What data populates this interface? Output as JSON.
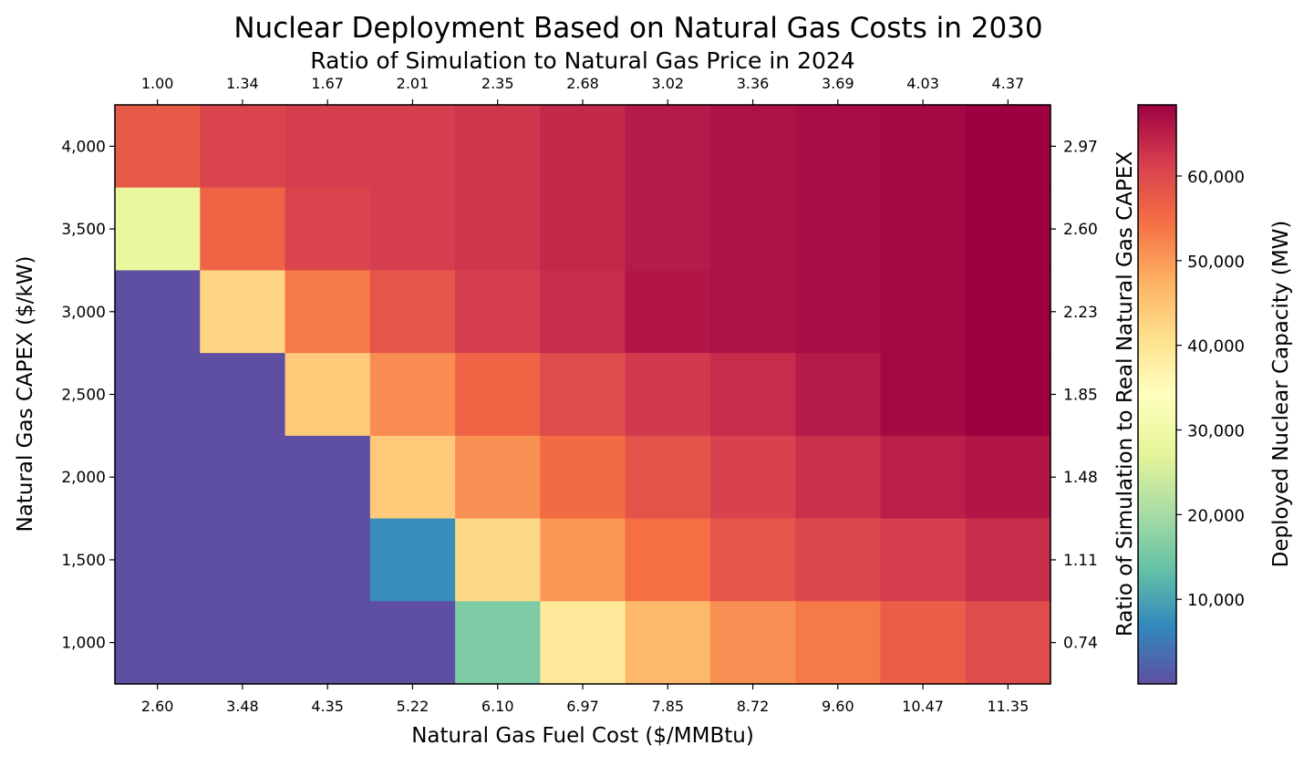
{
  "chart_data": {
    "type": "heatmap",
    "title": "Nuclear Deployment Based on Natural Gas Costs in 2030",
    "top_xlabel": "Ratio of Simulation to Natural Gas Price in 2024",
    "xlabel": "Natural Gas Fuel Cost ($/MMBtu)",
    "ylabel": "Natural Gas CAPEX ($/kW)",
    "right_ylabel": "Ratio of Simulation to Real Natural Gas CAPEX",
    "colorbar_label": "Deployed Nuclear Capacity (MW)",
    "colormap": "Spectral_r",
    "x_ticks": [
      "2.60",
      "3.48",
      "4.35",
      "5.22",
      "6.10",
      "6.97",
      "7.85",
      "8.72",
      "9.60",
      "10.47",
      "11.35"
    ],
    "top_x_ticks": [
      "1.00",
      "1.34",
      "1.67",
      "2.01",
      "2.35",
      "2.68",
      "3.02",
      "3.36",
      "3.69",
      "4.03",
      "4.37"
    ],
    "y_ticks": [
      "4,000",
      "3,500",
      "3,000",
      "2,500",
      "2,000",
      "1,500",
      "1,000"
    ],
    "right_y_ticks": [
      "2.97",
      "2.60",
      "2.23",
      "1.85",
      "1.48",
      "1.11",
      "0.74"
    ],
    "colorbar_ticks": [
      "10,000",
      "20,000",
      "30,000",
      "40,000",
      "50,000",
      "60,000"
    ],
    "colorbar_tick_values": [
      10000,
      20000,
      30000,
      40000,
      50000,
      60000
    ],
    "vlim": [
      0,
      68400
    ],
    "x": [
      2.6,
      3.48,
      4.35,
      5.22,
      6.1,
      6.97,
      7.85,
      8.72,
      9.6,
      10.47,
      11.35
    ],
    "y": [
      4000,
      3500,
      3000,
      2500,
      2000,
      1500,
      1000
    ],
    "values": [
      [
        57500,
        60500,
        61500,
        61500,
        62500,
        64000,
        65500,
        66500,
        67000,
        67500,
        68400
      ],
      [
        28500,
        56000,
        60500,
        61500,
        62500,
        64000,
        65500,
        66500,
        67000,
        67500,
        68400
      ],
      [
        0,
        42500,
        53500,
        58000,
        61500,
        63500,
        66000,
        66500,
        67000,
        67500,
        68400
      ],
      [
        0,
        0,
        44000,
        51500,
        56000,
        59500,
        62000,
        63500,
        65500,
        67500,
        68400
      ],
      [
        0,
        0,
        0,
        44000,
        51000,
        55000,
        58500,
        61000,
        63000,
        65000,
        66000
      ],
      [
        0,
        0,
        0,
        7500,
        42000,
        50500,
        54500,
        58000,
        60000,
        61500,
        63500
      ],
      [
        0,
        0,
        0,
        0,
        16000,
        39000,
        46500,
        51000,
        53500,
        57000,
        59500
      ]
    ],
    "grid": false
  }
}
